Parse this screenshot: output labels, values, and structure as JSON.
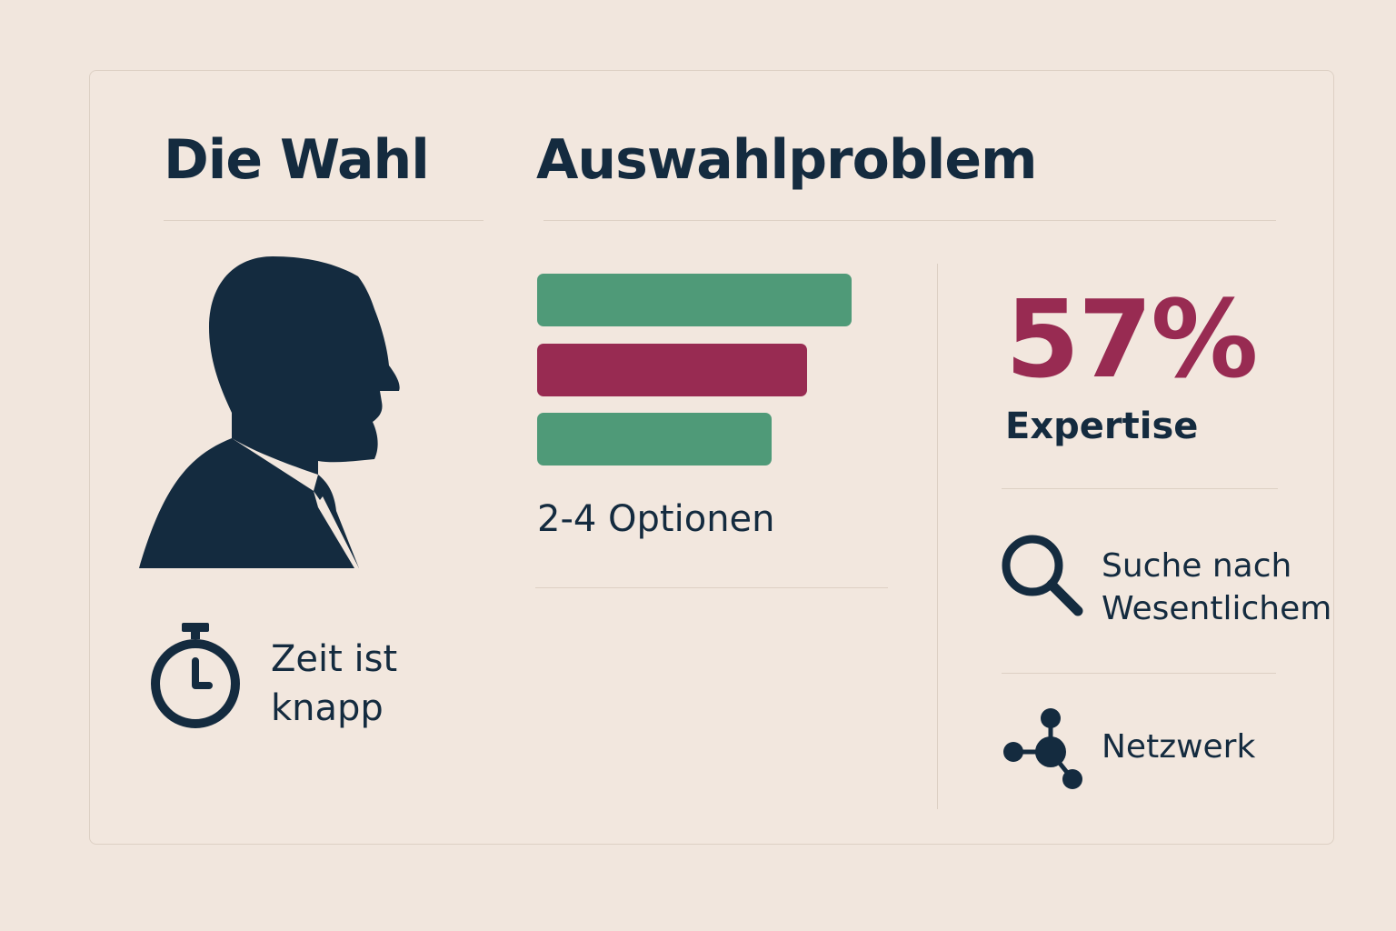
{
  "left": {
    "title": "Die Wahl",
    "time_label": [
      "Zeit ist",
      "knapp"
    ],
    "person_icon": "person-silhouette-icon",
    "time_icon": "stopwatch-icon"
  },
  "middle": {
    "title": "Auswahlproblem",
    "options_label": "2-4 Optionen",
    "option_bars": [
      {
        "color": "#4f9a78",
        "relative_length": 1.0
      },
      {
        "color": "#982b52",
        "relative_length": 0.86
      },
      {
        "color": "#4f9a78",
        "relative_length": 0.74
      }
    ]
  },
  "right": {
    "stat_value": "57%",
    "stat_label": "Expertise",
    "search_label": [
      "Suche nach",
      "Wesentlichem"
    ],
    "search_icon": "magnifier-icon",
    "network_label": "Netzwerk",
    "network_icon": "network-nodes-icon"
  },
  "colors": {
    "background": "#f1e6dd",
    "navy": "#142b3f",
    "green": "#4f9a78",
    "crimson": "#982b52"
  }
}
